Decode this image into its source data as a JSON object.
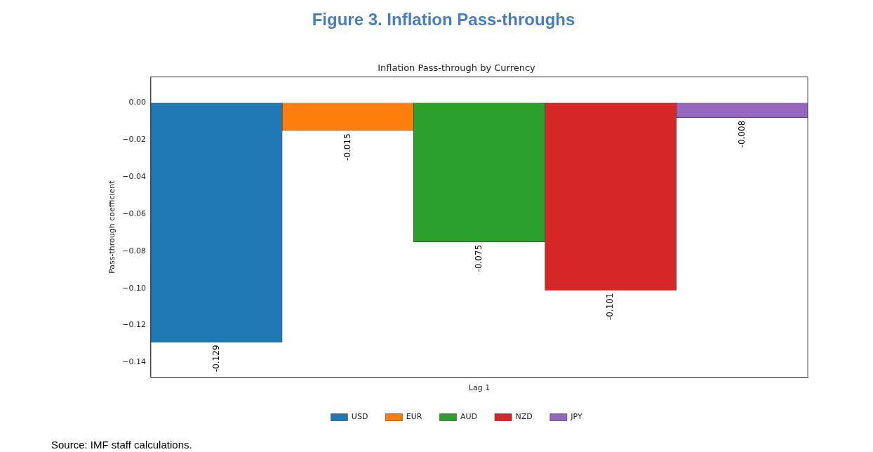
{
  "chart_data": {
    "type": "bar",
    "title": "Figure 3. Inflation Pass-throughs",
    "subtitle": "Inflation Pass-through by Currency",
    "xlabel": "Lag 1",
    "ylabel": "Pass-through coefficient",
    "categories": [
      null
    ],
    "series": [
      {
        "name": "USD",
        "color": "#1f77b4",
        "values": [
          -0.129
        ]
      },
      {
        "name": "EUR",
        "color": "#ff7f0e",
        "values": [
          -0.015
        ]
      },
      {
        "name": "AUD",
        "color": "#2ca02c",
        "values": [
          -0.075
        ]
      },
      {
        "name": "NZD",
        "color": "#d62728",
        "values": [
          -0.101
        ]
      },
      {
        "name": "JPY",
        "color": "#9467bd",
        "values": [
          -0.008
        ]
      }
    ],
    "ylim": [
      -0.148,
      0.014
    ],
    "yticks": [
      {
        "value": 0,
        "label": "0.00"
      },
      {
        "value": -0.02,
        "label": "−0.02"
      },
      {
        "value": -0.04,
        "label": "−0.04"
      },
      {
        "value": -0.06,
        "label": "−0.06"
      },
      {
        "value": -0.08,
        "label": "−0.08"
      },
      {
        "value": -0.1,
        "label": "−0.10"
      },
      {
        "value": -0.12,
        "label": "−0.12"
      },
      {
        "value": -0.14,
        "label": "−0.14"
      }
    ],
    "grid": false,
    "legend": "bottom",
    "data_labels": true,
    "annotations": [
      "Source: IMF staff calculations."
    ]
  }
}
